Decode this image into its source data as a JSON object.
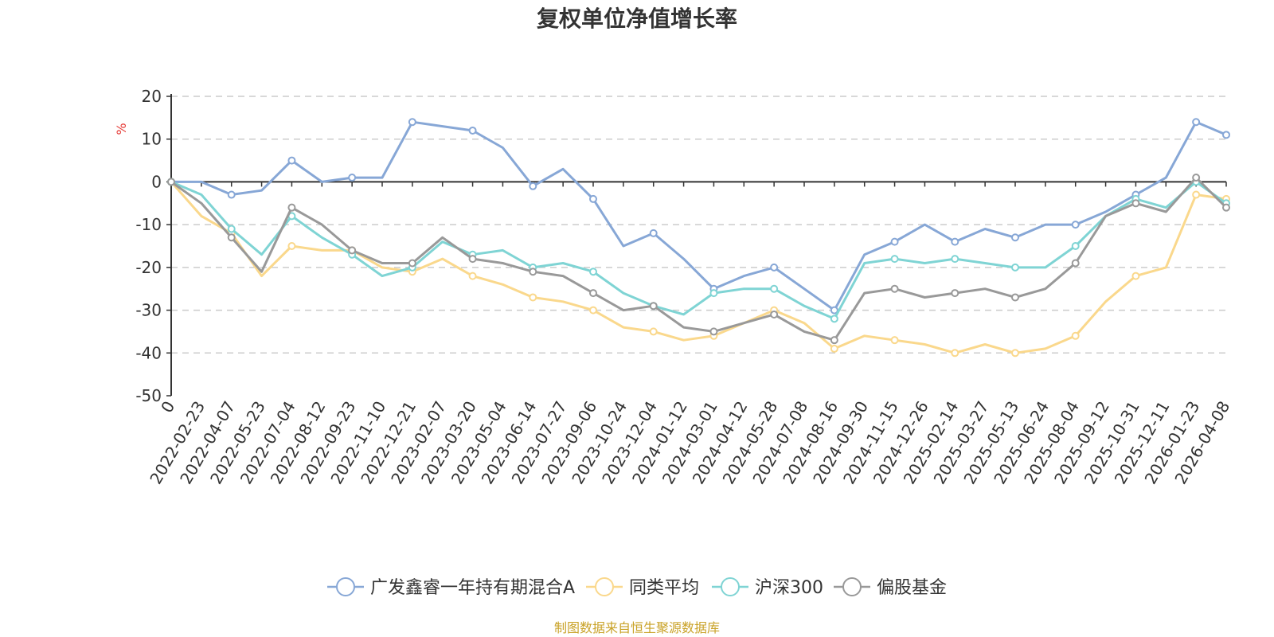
{
  "chart_data": {
    "type": "line",
    "title": "复权单位净值增长率",
    "ylabel": "%",
    "ylim": [
      -50,
      20
    ],
    "yticks": [
      20,
      10,
      0,
      -10,
      -20,
      -30,
      -40,
      -50
    ],
    "grid": true,
    "legend_position": "bottom",
    "categories": [
      "0",
      "2022-02-23",
      "2022-04-07",
      "2022-05-23",
      "2022-07-04",
      "2022-08-12",
      "2022-09-23",
      "2022-11-10",
      "2022-12-21",
      "2023-02-07",
      "2023-03-20",
      "2023-05-04",
      "2023-06-14",
      "2023-07-27",
      "2023-09-06",
      "2023-10-24",
      "2023-12-04",
      "2024-01-12",
      "2024-03-01",
      "2024-04-12",
      "2024-05-28",
      "2024-07-08",
      "2024-08-16",
      "2024-09-30",
      "2024-11-15",
      "2024-12-26",
      "2025-02-14",
      "2025-03-27",
      "2025-05-13",
      "2025-06-24",
      "2025-08-04",
      "2025-09-12",
      "2025-10-31",
      "2025-12-11",
      "2026-01-23",
      "2026-04-08"
    ],
    "series": [
      {
        "name": "广发鑫睿一年持有期混合A",
        "color": "#87a7d6",
        "values": [
          0,
          0,
          -3,
          -2,
          5,
          0,
          1,
          1,
          14,
          13,
          12,
          8,
          -1,
          3,
          -4,
          -15,
          -12,
          -18,
          -25,
          -22,
          -20,
          -25,
          -30,
          -17,
          -14,
          -10,
          -14,
          -11,
          -13,
          -10,
          -10,
          -7,
          -3,
          1,
          14,
          11
        ]
      },
      {
        "name": "同类平均",
        "color": "#fad88c",
        "values": [
          0,
          -8,
          -12,
          -22,
          -15,
          -16,
          -16,
          -20,
          -21,
          -18,
          -22,
          -24,
          -27,
          -28,
          -30,
          -34,
          -35,
          -37,
          -36,
          -33,
          -30,
          -33,
          -39,
          -36,
          -37,
          -38,
          -40,
          -38,
          -40,
          -39,
          -36,
          -28,
          -22,
          -20,
          -3,
          -4
        ]
      },
      {
        "name": "沪深300",
        "color": "#7fd4d4",
        "values": [
          0,
          -3,
          -11,
          -17,
          -8,
          -13,
          -17,
          -22,
          -20,
          -14,
          -17,
          -16,
          -20,
          -19,
          -21,
          -26,
          -29,
          -31,
          -26,
          -25,
          -25,
          -29,
          -32,
          -19,
          -18,
          -19,
          -18,
          -19,
          -20,
          -20,
          -15,
          -8,
          -4,
          -6,
          0,
          -5
        ]
      },
      {
        "name": "偏股基金",
        "color": "#999999",
        "values": [
          0,
          -5,
          -13,
          -21,
          -6,
          -10,
          -16,
          -19,
          -19,
          -13,
          -18,
          -19,
          -21,
          -22,
          -26,
          -30,
          -29,
          -34,
          -35,
          -33,
          -31,
          -35,
          -37,
          -26,
          -25,
          -27,
          -26,
          -25,
          -27,
          -25,
          -19,
          -8,
          -5,
          -7,
          1,
          -6
        ]
      }
    ]
  },
  "source_text": "制图数据来自恒生聚源数据库",
  "colors": {
    "axis": "#333333",
    "grid": "#cccccc",
    "ylabel": "#e53935",
    "source": "#c9a227"
  }
}
